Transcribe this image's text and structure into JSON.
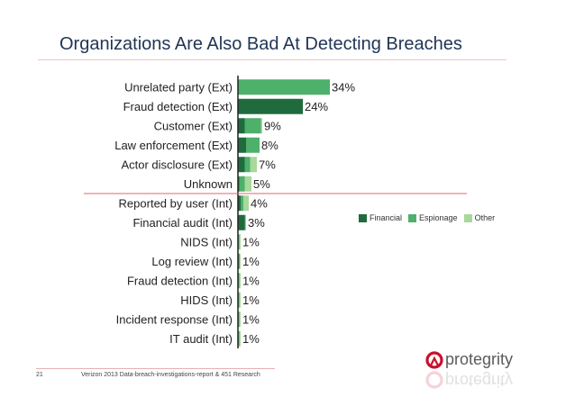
{
  "title": "Organizations Are Also Bad At Detecting Breaches",
  "footer": {
    "page_number": "21",
    "source": "Verizon 2013 Data-breach-investigations-report & 451 Research"
  },
  "logo": {
    "text": "protegrity"
  },
  "colors": {
    "financial": "#1f6b3d",
    "espionage": "#4db06b",
    "other": "#a8d89b",
    "divider": "#d96b6b",
    "axis": "#222222"
  },
  "chart_data": {
    "type": "bar",
    "orientation": "horizontal",
    "stacked": true,
    "categories": [
      "Unrelated party (Ext)",
      "Fraud detection (Ext)",
      "Customer (Ext)",
      "Law enforcement (Ext)",
      "Actor disclosure (Ext)",
      "Unknown",
      "Reported by user (Int)",
      "Financial audit (Int)",
      "NIDS (Int)",
      "Log review (Int)",
      "Fraud detection (Int)",
      "HIDS (Int)",
      "Incident response (Int)",
      "IT audit (Int)"
    ],
    "value_labels": [
      "34%",
      "24%",
      "9%",
      "8%",
      "7%",
      "5%",
      "4%",
      "3%",
      "1%",
      "1%",
      "1%",
      "1%",
      "1%",
      "1%"
    ],
    "series": [
      {
        "name": "Financial",
        "values": [
          0,
          24,
          2.5,
          3,
          2.5,
          0.5,
          1,
          2.5,
          0,
          0.3,
          0,
          0,
          0,
          0
        ]
      },
      {
        "name": "Espionage",
        "values": [
          34,
          0,
          6,
          5,
          2,
          2,
          1,
          0.3,
          0.5,
          0.4,
          0.5,
          0.5,
          0.5,
          0.5
        ]
      },
      {
        "name": "Other",
        "values": [
          0,
          0,
          0.5,
          0,
          2.5,
          2.5,
          2,
          0.2,
          0.5,
          0.3,
          0.5,
          0.5,
          0.5,
          0.5
        ]
      }
    ],
    "xlim": [
      0,
      34
    ],
    "legend": {
      "position": "right",
      "entries": [
        "Financial",
        "Espionage",
        "Other"
      ]
    },
    "grid": false
  }
}
